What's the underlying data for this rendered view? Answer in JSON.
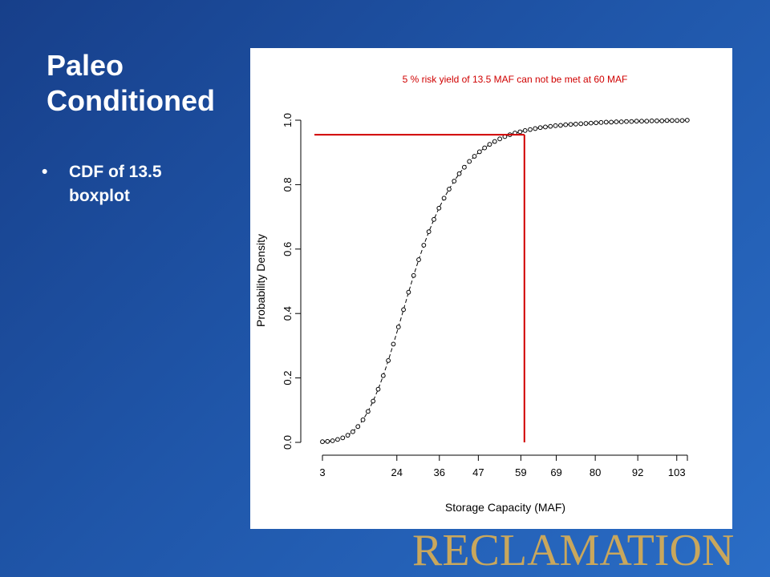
{
  "slide": {
    "title_line1": "Paleo",
    "title_line2": "Conditioned",
    "bullets": [
      {
        "marker": "•",
        "line1": "CDF of 13.5",
        "line2": "boxplot"
      }
    ],
    "logo": "RECLAMATION",
    "colors": {
      "background": "#1f55a8",
      "text": "#ffffff",
      "logo": "#c9a75c",
      "highlight": "#d00000"
    }
  },
  "chart_data": {
    "type": "line",
    "title": "5 % risk yield of 13.5 MAF can not be met at  60 MAF",
    "xlabel": "Storage Capacity (MAF)",
    "ylabel": "Probability Density",
    "x_tick_labels": [
      "3",
      "24",
      "36",
      "47",
      "59",
      "69",
      "80",
      "92",
      "103"
    ],
    "x_tick_values": [
      3,
      24,
      36,
      47,
      59,
      69,
      80,
      92,
      103
    ],
    "y_tick_labels": [
      "0.0",
      "0.2",
      "0.4",
      "0.6",
      "0.8",
      "1.0"
    ],
    "y_tick_values": [
      0,
      0.2,
      0.4,
      0.6,
      0.8,
      1.0
    ],
    "xlim": [
      3,
      106
    ],
    "ylim": [
      0,
      1
    ],
    "grid": false,
    "series": [
      {
        "marker": "circle",
        "line_style": "dashed",
        "color": "#000000",
        "x": [
          3,
          4.43,
          5.86,
          7.29,
          8.72,
          10.15,
          11.58,
          13.01,
          14.44,
          15.87,
          17.3,
          18.73,
          20.16,
          21.59,
          23.02,
          24.45,
          25.88,
          27.31,
          28.74,
          30.17,
          31.6,
          33.03,
          34.46,
          35.89,
          37.32,
          38.75,
          40.18,
          41.61,
          43.04,
          44.47,
          45.9,
          47.33,
          48.76,
          50.19,
          51.62,
          53.05,
          54.48,
          55.91,
          57.34,
          58.77,
          60.2,
          61.63,
          63.06,
          64.49,
          65.92,
          67.35,
          68.78,
          70.21,
          71.64,
          73.07,
          74.5,
          75.93,
          77.36,
          78.79,
          80.22,
          81.65,
          83.08,
          84.51,
          85.94,
          87.37,
          88.8,
          90.23,
          91.66,
          93.09,
          94.52,
          95.95,
          97.38,
          98.81,
          100.24,
          101.67,
          103.1,
          104.53,
          105.96
        ],
        "y": [
          0.002,
          0.003,
          0.005,
          0.009,
          0.014,
          0.022,
          0.033,
          0.049,
          0.07,
          0.096,
          0.128,
          0.165,
          0.207,
          0.254,
          0.305,
          0.358,
          0.412,
          0.466,
          0.518,
          0.567,
          0.612,
          0.654,
          0.692,
          0.727,
          0.758,
          0.786,
          0.811,
          0.834,
          0.854,
          0.872,
          0.888,
          0.902,
          0.914,
          0.925,
          0.934,
          0.942,
          0.949,
          0.955,
          0.96,
          0.964,
          0.968,
          0.971,
          0.974,
          0.977,
          0.979,
          0.981,
          0.983,
          0.984,
          0.986,
          0.987,
          0.988,
          0.989,
          0.99,
          0.991,
          0.992,
          0.993,
          0.994,
          0.994,
          0.995,
          0.995,
          0.996,
          0.996,
          0.997,
          0.997,
          0.997,
          0.998,
          0.998,
          0.998,
          0.999,
          0.999,
          0.999,
          0.999,
          1.0
        ]
      }
    ],
    "annotations": [
      {
        "type": "vline",
        "x": 60,
        "y0": 0,
        "y1": 0.955,
        "color": "#d00000"
      },
      {
        "type": "hline",
        "y": 0.955,
        "x0": 0,
        "x1": 60,
        "color": "#d00000"
      }
    ]
  }
}
